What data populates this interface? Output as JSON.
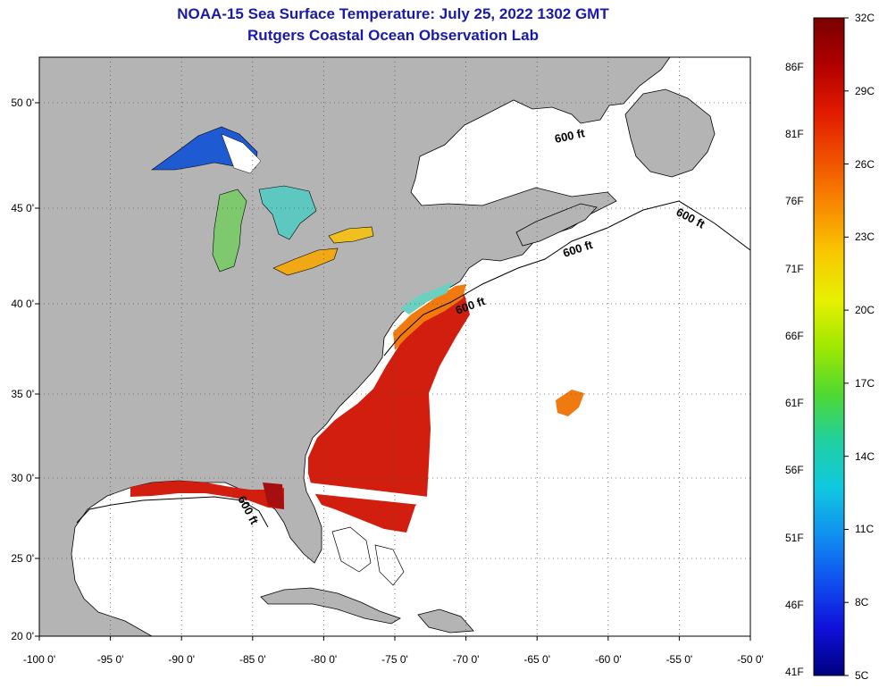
{
  "header": {
    "title": "NOAA-15 Sea Surface Temperature:  July 25, 2022 1302 GMT",
    "subtitle": "Rutgers Coastal Ocean Observation Lab"
  },
  "map": {
    "lon_labels": [
      "-100 0'",
      "-95 0'",
      "-90 0'",
      "-85 0'",
      "-80 0'",
      "-75 0'",
      "-70 0'",
      "-65 0'",
      "-60 0'",
      "-55 0'",
      "-50 0'"
    ],
    "lat_labels": [
      "50 0'",
      "45 0'",
      "40 0'",
      "35 0'",
      "30 0'",
      "25 0'",
      "20 0'"
    ],
    "isobath_label": "600 ft",
    "colors": {
      "land": "#b4b4b4",
      "ocean": "#ffffff",
      "sst_warm": "#d21e0f",
      "sst_hot": "#a50f0f",
      "sst_orange": "#f07a10",
      "superior": "#1e5ad2",
      "lakes_mixed": "#7ec86e",
      "lakes_warm": "#f0b414"
    }
  },
  "colorbar": {
    "celsius_labels": [
      "32C",
      "29C",
      "26C",
      "23C",
      "20C",
      "17C",
      "14C",
      "11C",
      "8C",
      "5C"
    ],
    "fahrenheit_labels": [
      "86F",
      "81F",
      "76F",
      "71F",
      "66F",
      "61F",
      "56F",
      "51F",
      "46F",
      "41F"
    ],
    "gradient": [
      "#7a0000",
      "#b00000",
      "#e01a00",
      "#f05000",
      "#f88a00",
      "#f8c800",
      "#e8f000",
      "#a0e800",
      "#50d830",
      "#20d0a0",
      "#10c8e0",
      "#1090f0",
      "#1050f0",
      "#1010d8",
      "#000080"
    ]
  }
}
